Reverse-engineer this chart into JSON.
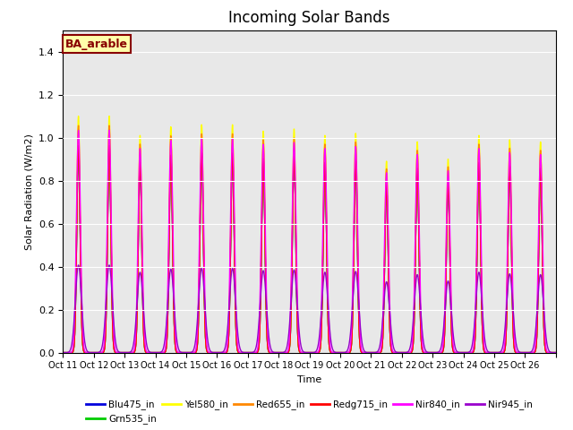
{
  "title": "Incoming Solar Bands",
  "xlabel": "Time",
  "ylabel": "Solar Radiation (W/m2)",
  "annotation_text": "BA_arable",
  "ylim": [
    0,
    1.5
  ],
  "yticks": [
    0.0,
    0.2,
    0.4,
    0.6,
    0.8,
    1.0,
    1.2,
    1.4
  ],
  "x_tick_labels": [
    "Oct 11",
    "Oct 12",
    "Oct 13",
    "Oct 14",
    "Oct 15",
    "Oct 16",
    "Oct 17",
    "Oct 18",
    "Oct 19",
    "Oct 20",
    "Oct 21",
    "Oct 22",
    "Oct 23",
    "Oct 24",
    "Oct 25",
    "Oct 26"
  ],
  "series": [
    {
      "name": "Blu475_in",
      "color": "#0000dd",
      "lw": 1.0,
      "scale": 0.88
    },
    {
      "name": "Grn535_in",
      "color": "#00cc00",
      "lw": 1.0,
      "scale": 0.88
    },
    {
      "name": "Yel580_in",
      "color": "#ffff00",
      "lw": 1.0,
      "scale": 1.0
    },
    {
      "name": "Red655_in",
      "color": "#ff8800",
      "lw": 1.0,
      "scale": 0.96
    },
    {
      "name": "Redg715_in",
      "color": "#ff0000",
      "lw": 1.0,
      "scale": 0.875
    },
    {
      "name": "Nir840_in",
      "color": "#ff00ff",
      "lw": 1.0,
      "scale": 0.94
    },
    {
      "name": "Nir945_in",
      "color": "#9900cc",
      "lw": 1.0,
      "scale": 0.37
    }
  ],
  "peak_values": [
    1.1,
    1.1,
    1.01,
    1.05,
    1.06,
    1.06,
    1.03,
    1.04,
    1.01,
    1.02,
    0.89,
    0.98,
    0.9,
    1.01,
    0.99,
    0.98
  ],
  "points_per_day": 288,
  "background_color": "#e8e8e8",
  "title_fontsize": 12,
  "annotation_fontsize": 9,
  "annotation_bg": "#ffffaa",
  "annotation_border": "#880000"
}
